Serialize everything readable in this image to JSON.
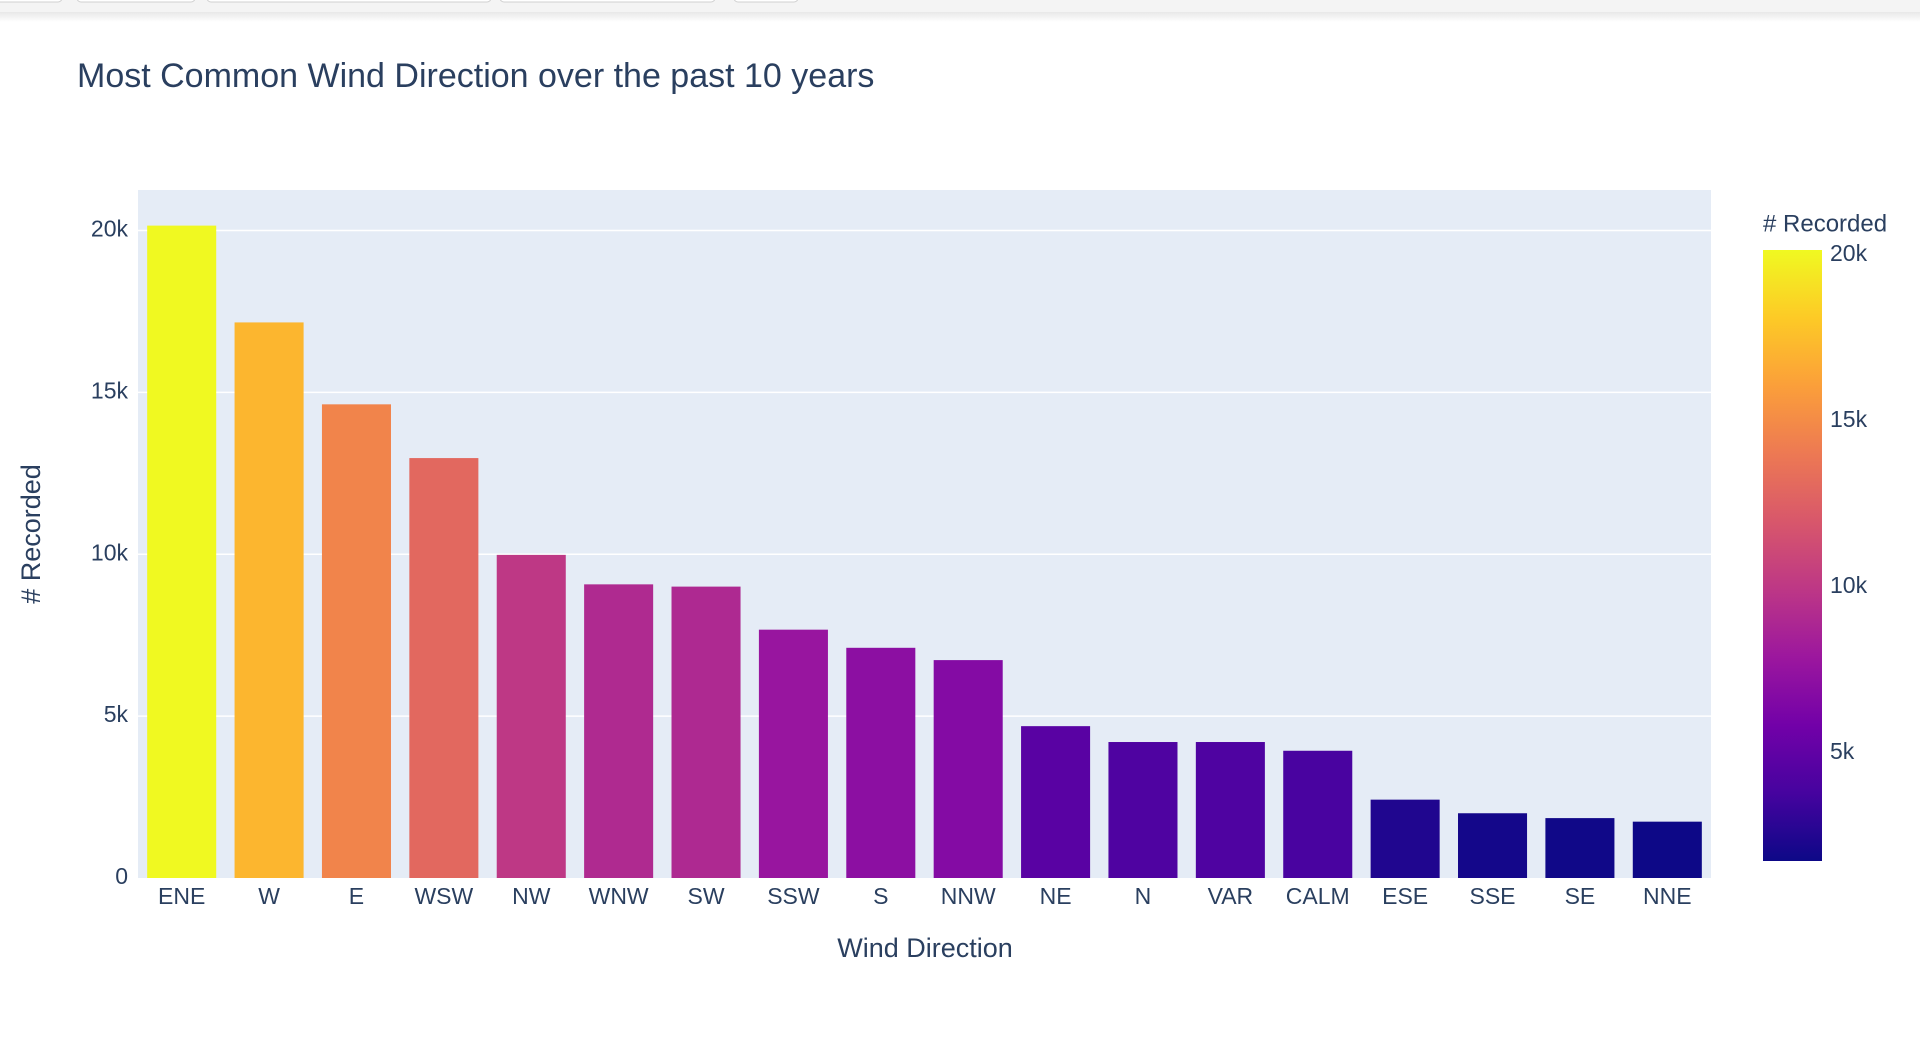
{
  "chart_data": {
    "type": "bar",
    "title": "Most Common Wind Direction over the past 10 years",
    "x_label": "Wind Direction",
    "y_label": "# Recorded",
    "categories": [
      "ENE",
      "W",
      "E",
      "WSW",
      "NW",
      "WNW",
      "SW",
      "SSW",
      "S",
      "NNW",
      "NE",
      "N",
      "VAR",
      "CALM",
      "ESE",
      "SSE",
      "SE",
      "NNE"
    ],
    "values": [
      20150,
      17160,
      14630,
      12970,
      9980,
      9070,
      9000,
      7670,
      7110,
      6730,
      4690,
      4200,
      4200,
      3930,
      2420,
      2000,
      1850,
      1740
    ],
    "ylim": [
      0,
      21250
    ],
    "yticks": [
      0,
      {
        "value": 5000,
        "label": "5k"
      },
      {
        "value": 10000,
        "label": "10k"
      },
      {
        "value": 15000,
        "label": "15k"
      },
      {
        "value": 20000,
        "label": "20k"
      }
    ],
    "grid": true,
    "colorscale": [
      "#0d0887",
      "#46039f",
      "#7201a8",
      "#9c179e",
      "#bd3786",
      "#d8576b",
      "#ed7953",
      "#fb9f3a",
      "#fdca26",
      "#f0f921"
    ],
    "colorbar": {
      "title": "# Recorded",
      "ticks": [
        {
          "value": 5000,
          "label": "5k"
        },
        {
          "value": 10000,
          "label": "10k"
        },
        {
          "value": 15000,
          "label": "15k"
        },
        {
          "value": 20000,
          "label": "20k"
        }
      ]
    }
  }
}
